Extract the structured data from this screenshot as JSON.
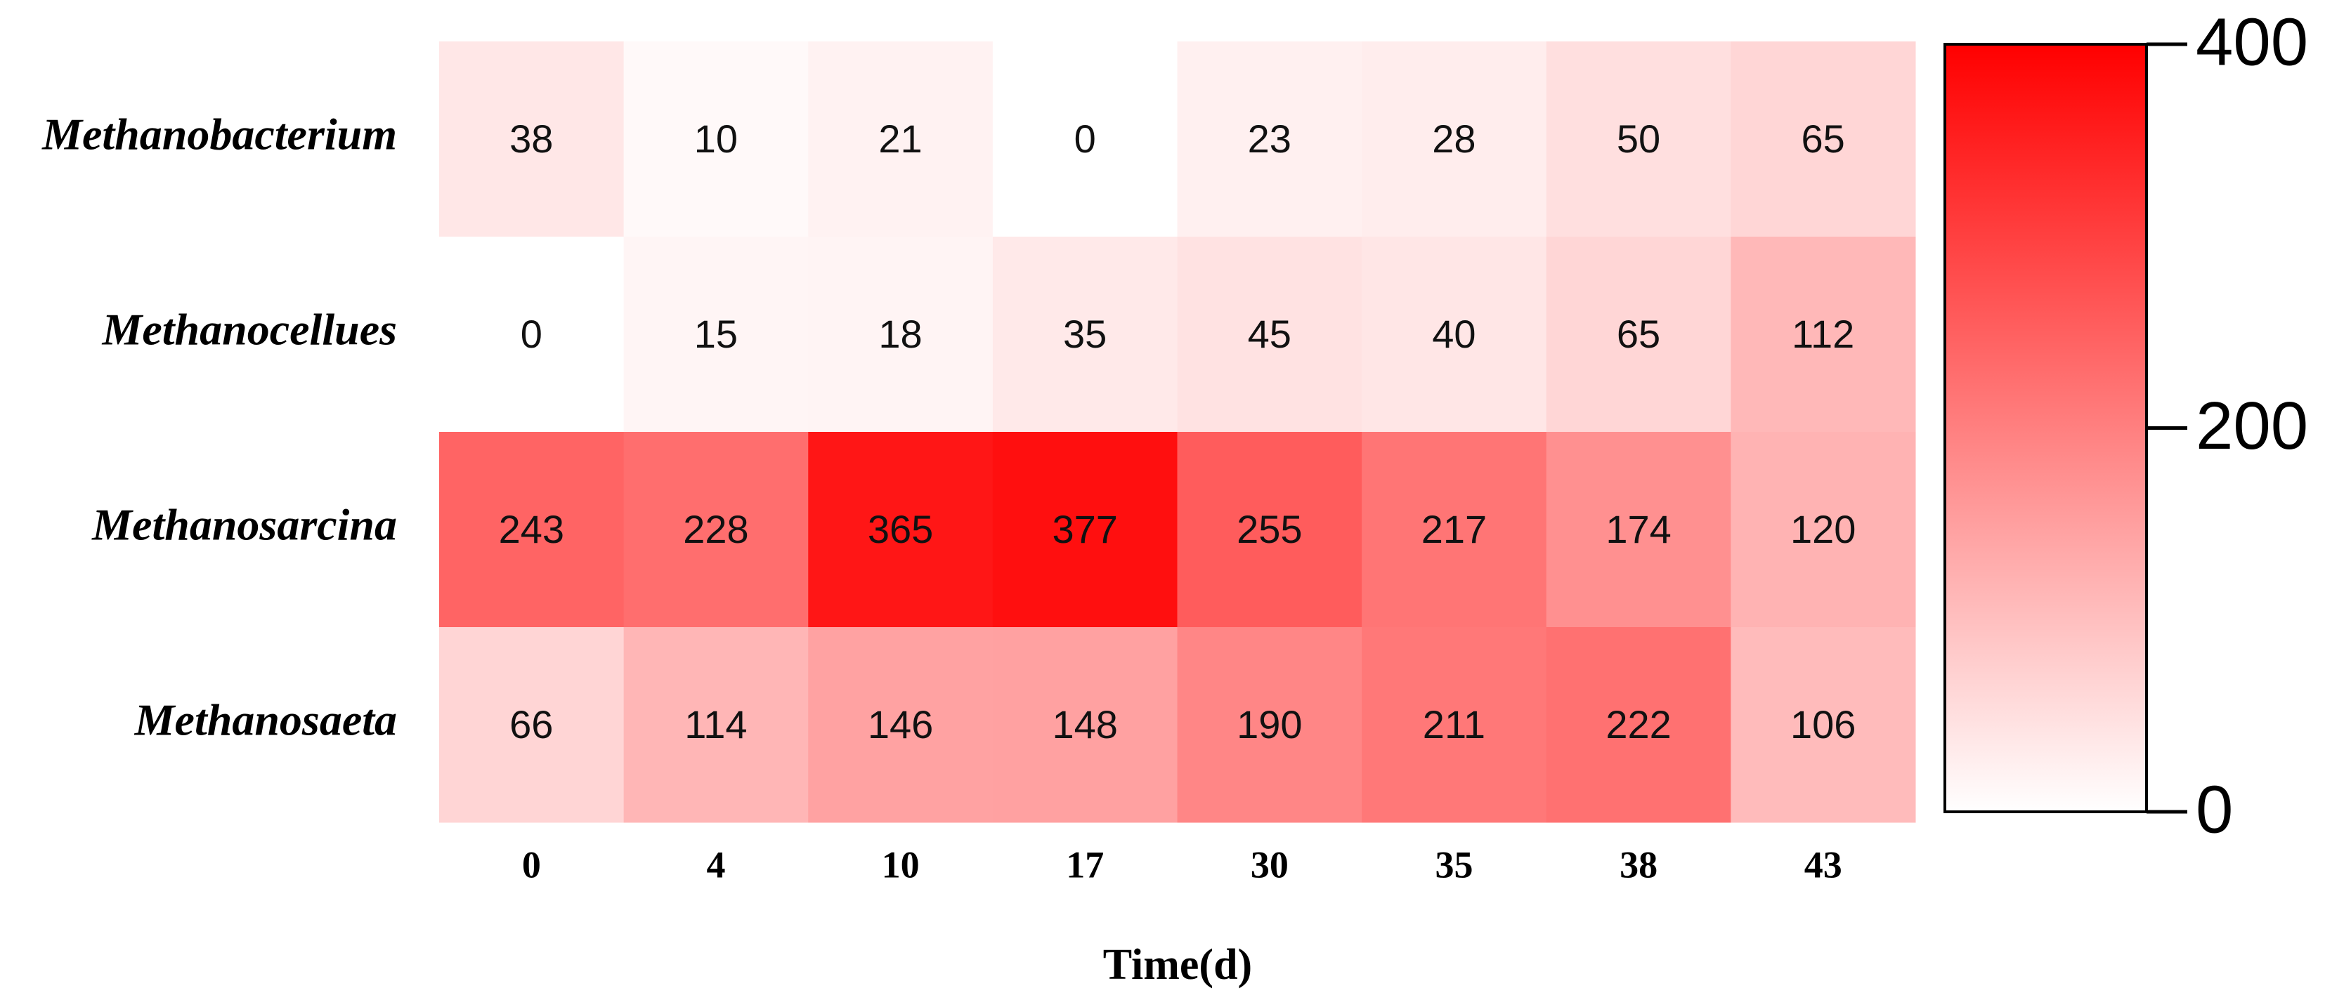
{
  "chart_data": {
    "type": "heatmap",
    "x_label": "Time(d)",
    "categories": [
      "0",
      "4",
      "10",
      "17",
      "30",
      "35",
      "38",
      "43"
    ],
    "rows": [
      "Methanobacterium",
      "Methanocellues",
      "Methanosarcina",
      "Methanosaeta"
    ],
    "values": [
      [
        38,
        10,
        21,
        0,
        23,
        28,
        50,
        65
      ],
      [
        0,
        15,
        18,
        35,
        45,
        40,
        65,
        112
      ],
      [
        243,
        228,
        365,
        377,
        255,
        217,
        174,
        120
      ],
      [
        66,
        114,
        146,
        148,
        190,
        211,
        222,
        106
      ]
    ],
    "colormap": [
      "#ffffff",
      "#ff0000"
    ],
    "zlim": [
      0,
      400
    ],
    "zticks": [
      0,
      200,
      400
    ]
  }
}
